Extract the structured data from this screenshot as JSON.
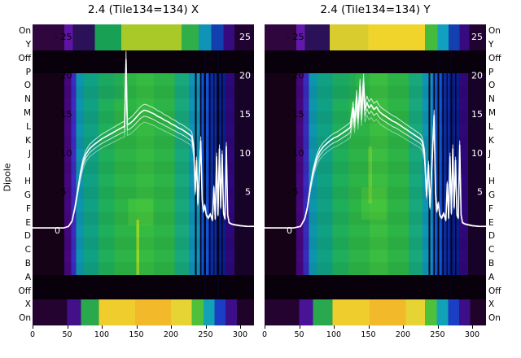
{
  "figure": {
    "ylabel": "Dipole",
    "dipole_labels": [
      "On",
      "Y",
      "Off",
      "P",
      "O",
      "N",
      "M",
      "L",
      "K",
      "J",
      "I",
      "H",
      "G",
      "F",
      "E",
      "D",
      "C",
      "B",
      "A",
      "Off",
      "X",
      "On"
    ],
    "x_ticks": [
      0,
      50,
      100,
      150,
      200,
      250,
      300
    ],
    "power_ticks": [
      25,
      20,
      15,
      10,
      5,
      0
    ],
    "colors": {
      "line": "#ffffff",
      "off_band": "#08000a",
      "tick_label_dark": "#000000",
      "tick_label_light": "#ffffff",
      "background": "#ffffff"
    }
  },
  "chart_data": [
    {
      "type": "heatmap",
      "title": "2.4 (Tile134=134) X",
      "xlabel": "",
      "ylabel": "Dipole",
      "x_range": [
        0,
        320
      ],
      "power_axis": {
        "ticks": [
          25,
          20,
          15,
          10,
          5,
          0
        ],
        "zero_label": "0"
      },
      "legend": "none",
      "bands_top": [
        [
          0,
          46,
          "#30063e"
        ],
        [
          46,
          58,
          "#5f14a5"
        ],
        [
          58,
          90,
          "#2a1158"
        ],
        [
          90,
          128,
          "#18a055"
        ],
        [
          128,
          215,
          "#a8c928"
        ],
        [
          215,
          240,
          "#2fae4a"
        ],
        [
          240,
          258,
          "#0f93b6"
        ],
        [
          258,
          276,
          "#1340b0"
        ],
        [
          276,
          292,
          "#380a80"
        ],
        [
          292,
          320,
          "#200330"
        ]
      ],
      "bands_main": [
        [
          0,
          46,
          "#150217"
        ],
        [
          46,
          56,
          "#45077e"
        ],
        [
          56,
          63,
          "#3b2cc0"
        ],
        [
          63,
          74,
          "#0e95ae"
        ],
        [
          74,
          95,
          "#10a184"
        ],
        [
          95,
          118,
          "#1fae5a"
        ],
        [
          118,
          150,
          "#2cb447"
        ],
        [
          150,
          175,
          "#36bb42"
        ],
        [
          175,
          205,
          "#2cb447"
        ],
        [
          205,
          226,
          "#18a87c"
        ],
        [
          226,
          241,
          "#0f93b6"
        ],
        [
          241,
          254,
          "#1356cf"
        ],
        [
          254,
          265,
          "#0b2da3"
        ],
        [
          265,
          279,
          "#081f8c"
        ],
        [
          279,
          292,
          "#2e0878"
        ],
        [
          292,
          320,
          "#180328"
        ]
      ],
      "bands_bottom": [
        [
          0,
          50,
          "#240330"
        ],
        [
          50,
          70,
          "#43108a"
        ],
        [
          70,
          96,
          "#2aa84e"
        ],
        [
          96,
          148,
          "#eecd2c"
        ],
        [
          148,
          200,
          "#f2b92a"
        ],
        [
          200,
          230,
          "#e6d434"
        ],
        [
          230,
          247,
          "#4fc03a"
        ],
        [
          247,
          263,
          "#12a2b8"
        ],
        [
          263,
          279,
          "#1b3fc4"
        ],
        [
          279,
          295,
          "#3c0e88"
        ],
        [
          295,
          320,
          "#200328"
        ]
      ],
      "patches": [
        {
          "x0": 138,
          "x1": 174,
          "y0": 214,
          "y1": 247,
          "color": "#4ecb38",
          "opacity": 0.5
        },
        {
          "x0": 150,
          "x1": 154,
          "y0": 240,
          "y1": 308,
          "color": "#b4e022",
          "opacity": 0.75
        },
        {
          "x0": 96,
          "x1": 130,
          "y0": 60,
          "y1": 92,
          "color": "#17a06a",
          "opacity": 0.4
        }
      ],
      "stripes": [
        {
          "x": 236,
          "w": 2,
          "color": "#05051f"
        },
        {
          "x": 243,
          "w": 1.6,
          "color": "#05051f"
        },
        {
          "x": 249,
          "w": 2.2,
          "color": "#04041a",
          "full": true
        },
        {
          "x": 256,
          "w": 1.6,
          "color": "#05051f"
        },
        {
          "x": 262,
          "w": 1.4,
          "color": "#0a0a30"
        },
        {
          "x": 268,
          "w": 2.4,
          "color": "#04041a",
          "full": true
        },
        {
          "x": 274,
          "w": 1.6,
          "color": "#05051f"
        }
      ],
      "line": {
        "color": "#ffffff",
        "points": [
          [
            0,
            0.3
          ],
          [
            45,
            0.3
          ],
          [
            52,
            0.5
          ],
          [
            57,
            1.2
          ],
          [
            61,
            2.8
          ],
          [
            65,
            5
          ],
          [
            69,
            7.2
          ],
          [
            73,
            8.8
          ],
          [
            77,
            9.8
          ],
          [
            82,
            10.5
          ],
          [
            88,
            11
          ],
          [
            94,
            11.4
          ],
          [
            100,
            11.8
          ],
          [
            106,
            12.1
          ],
          [
            112,
            12.4
          ],
          [
            118,
            12.7
          ],
          [
            124,
            13
          ],
          [
            130,
            13.3
          ],
          [
            133,
            13.4
          ],
          [
            135,
            22
          ],
          [
            137,
            13.6
          ],
          [
            141,
            13.8
          ],
          [
            146,
            14.2
          ],
          [
            151,
            14.7
          ],
          [
            156,
            15.2
          ],
          [
            161,
            15.5
          ],
          [
            166,
            15.4
          ],
          [
            171,
            15.2
          ],
          [
            176,
            15
          ],
          [
            181,
            14.7
          ],
          [
            186,
            14.5
          ],
          [
            191,
            14.2
          ],
          [
            196,
            14
          ],
          [
            201,
            13.7
          ],
          [
            206,
            13.5
          ],
          [
            211,
            13.2
          ],
          [
            216,
            13
          ],
          [
            221,
            12.7
          ],
          [
            226,
            12.4
          ],
          [
            230,
            12.1
          ],
          [
            233,
            10.5
          ],
          [
            235,
            5
          ],
          [
            237,
            9
          ],
          [
            239,
            3.5
          ],
          [
            241,
            7.5
          ],
          [
            243,
            11.5
          ],
          [
            245,
            4
          ],
          [
            247,
            2.5
          ],
          [
            249,
            3.2
          ],
          [
            251,
            2
          ],
          [
            254,
            1.6
          ],
          [
            257,
            2.1
          ],
          [
            260,
            1.3
          ],
          [
            262,
            5.5
          ],
          [
            264,
            1.5
          ],
          [
            266,
            9.5
          ],
          [
            268,
            2
          ],
          [
            270,
            10.5
          ],
          [
            272,
            3
          ],
          [
            274,
            9.8
          ],
          [
            276,
            2.2
          ],
          [
            278,
            1.5
          ],
          [
            280,
            10.8
          ],
          [
            282,
            2
          ],
          [
            284,
            1
          ],
          [
            288,
            0.8
          ],
          [
            293,
            0.7
          ],
          [
            300,
            0.6
          ],
          [
            310,
            0.5
          ],
          [
            320,
            0.5
          ]
        ]
      }
    },
    {
      "type": "heatmap",
      "title": "2.4 (Tile134=134) Y",
      "xlabel": "",
      "ylabel": "Dipole",
      "x_range": [
        0,
        320
      ],
      "power_axis": {
        "ticks": [
          25,
          20,
          15,
          10,
          5,
          0
        ],
        "zero_label": "0"
      },
      "legend": "none",
      "bands_top": [
        [
          0,
          46,
          "#30063e"
        ],
        [
          46,
          58,
          "#6318ac"
        ],
        [
          58,
          94,
          "#2a1158"
        ],
        [
          94,
          150,
          "#d8cc2e"
        ],
        [
          150,
          232,
          "#f0d42c"
        ],
        [
          232,
          250,
          "#44bb3c"
        ],
        [
          250,
          266,
          "#12a0c0"
        ],
        [
          266,
          282,
          "#1340b0"
        ],
        [
          282,
          296,
          "#380a80"
        ],
        [
          296,
          320,
          "#200330"
        ]
      ],
      "bands_main": [
        [
          0,
          46,
          "#150217"
        ],
        [
          46,
          56,
          "#45077e"
        ],
        [
          56,
          64,
          "#3a2abc"
        ],
        [
          64,
          76,
          "#0e95ae"
        ],
        [
          76,
          98,
          "#10a184"
        ],
        [
          98,
          122,
          "#1fae5a"
        ],
        [
          122,
          152,
          "#2cb447"
        ],
        [
          152,
          178,
          "#3abd40"
        ],
        [
          178,
          208,
          "#2cb447"
        ],
        [
          208,
          228,
          "#18a87c"
        ],
        [
          228,
          243,
          "#0f93b6"
        ],
        [
          243,
          256,
          "#1356cf"
        ],
        [
          256,
          267,
          "#0b2da3"
        ],
        [
          267,
          281,
          "#081f8c"
        ],
        [
          281,
          294,
          "#2e0878"
        ],
        [
          294,
          320,
          "#180328"
        ]
      ],
      "bands_bottom": [
        [
          0,
          50,
          "#240330"
        ],
        [
          50,
          70,
          "#4a1296"
        ],
        [
          70,
          98,
          "#2aa84e"
        ],
        [
          98,
          152,
          "#eecd2c"
        ],
        [
          152,
          204,
          "#f2b92a"
        ],
        [
          204,
          232,
          "#e6d434"
        ],
        [
          232,
          249,
          "#4fc03a"
        ],
        [
          249,
          265,
          "#12a2b8"
        ],
        [
          265,
          281,
          "#1b3fc4"
        ],
        [
          281,
          297,
          "#3c0e88"
        ],
        [
          297,
          320,
          "#200328"
        ]
      ],
      "patches": [
        {
          "x0": 140,
          "x1": 176,
          "y0": 200,
          "y1": 240,
          "color": "#4ecb38",
          "opacity": 0.5
        },
        {
          "x0": 150,
          "x1": 155,
          "y0": 150,
          "y1": 220,
          "color": "#8fd42a",
          "opacity": 0.5
        },
        {
          "x0": 98,
          "x1": 132,
          "y0": 60,
          "y1": 92,
          "color": "#17a06a",
          "opacity": 0.4
        }
      ],
      "stripes": [
        {
          "x": 238,
          "w": 2,
          "color": "#05051f"
        },
        {
          "x": 245,
          "w": 1.6,
          "color": "#05051f"
        },
        {
          "x": 251,
          "w": 2.2,
          "color": "#04041a",
          "full": true
        },
        {
          "x": 258,
          "w": 1.6,
          "color": "#05051f"
        },
        {
          "x": 264,
          "w": 1.4,
          "color": "#0a0a30"
        },
        {
          "x": 270,
          "w": 2.4,
          "color": "#04041a",
          "full": true
        },
        {
          "x": 276,
          "w": 1.6,
          "color": "#05051f"
        }
      ],
      "line": {
        "color": "#ffffff",
        "points": [
          [
            0,
            0.3
          ],
          [
            42,
            0.3
          ],
          [
            52,
            0.5
          ],
          [
            58,
            1.5
          ],
          [
            62,
            3
          ],
          [
            66,
            5.5
          ],
          [
            70,
            7.5
          ],
          [
            75,
            9.2
          ],
          [
            80,
            10.2
          ],
          [
            85,
            10.8
          ],
          [
            90,
            11.2
          ],
          [
            95,
            11.6
          ],
          [
            100,
            11.9
          ],
          [
            105,
            12.1
          ],
          [
            110,
            12.4
          ],
          [
            115,
            12.7
          ],
          [
            120,
            13
          ],
          [
            124,
            13.3
          ],
          [
            128,
            15.8
          ],
          [
            130,
            14
          ],
          [
            133,
            17.2
          ],
          [
            135,
            14.5
          ],
          [
            138,
            18.6
          ],
          [
            140,
            15
          ],
          [
            143,
            19.2
          ],
          [
            145,
            15.5
          ],
          [
            148,
            16.5
          ],
          [
            151,
            15.8
          ],
          [
            154,
            16.2
          ],
          [
            158,
            15.6
          ],
          [
            162,
            15.9
          ],
          [
            166,
            15.3
          ],
          [
            170,
            15
          ],
          [
            175,
            14.7
          ],
          [
            180,
            14.4
          ],
          [
            185,
            14.1
          ],
          [
            190,
            13.9
          ],
          [
            195,
            13.6
          ],
          [
            200,
            13.3
          ],
          [
            205,
            13
          ],
          [
            210,
            12.7
          ],
          [
            215,
            12.4
          ],
          [
            220,
            12.1
          ],
          [
            225,
            11.8
          ],
          [
            228,
            11.4
          ],
          [
            231,
            10
          ],
          [
            234,
            4.5
          ],
          [
            237,
            8.5
          ],
          [
            239,
            3
          ],
          [
            241,
            7
          ],
          [
            243,
            11
          ],
          [
            245,
            14.8
          ],
          [
            247,
            5
          ],
          [
            249,
            2.5
          ],
          [
            251,
            3.5
          ],
          [
            253,
            2
          ],
          [
            256,
            1.6
          ],
          [
            259,
            2.2
          ],
          [
            262,
            1.3
          ],
          [
            264,
            6
          ],
          [
            266,
            1.6
          ],
          [
            268,
            9.5
          ],
          [
            270,
            2.2
          ],
          [
            272,
            10.5
          ],
          [
            274,
            3
          ],
          [
            276,
            9
          ],
          [
            278,
            2
          ],
          [
            280,
            1.6
          ],
          [
            282,
            11
          ],
          [
            284,
            2
          ],
          [
            286,
            1
          ],
          [
            290,
            0.8
          ],
          [
            295,
            0.7
          ],
          [
            300,
            0.6
          ],
          [
            310,
            0.5
          ],
          [
            320,
            0.5
          ]
        ]
      }
    }
  ]
}
